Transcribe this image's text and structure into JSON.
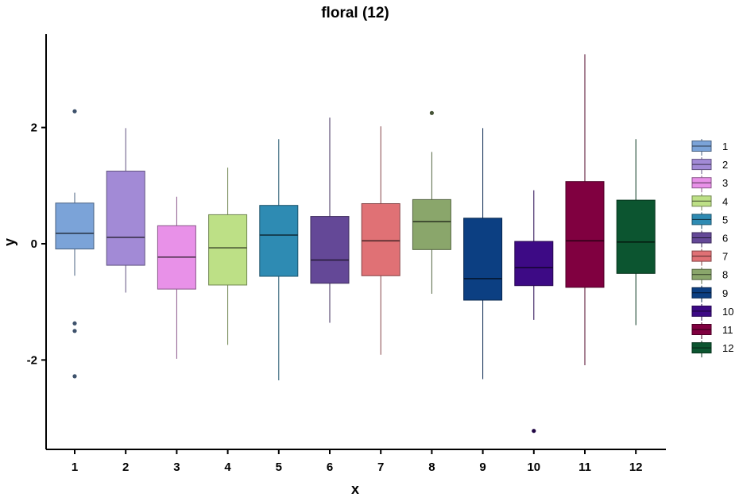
{
  "chart_data": {
    "type": "boxplot",
    "title": "floral (12)",
    "xlabel": "x",
    "ylabel": "y",
    "ylim": [
      -3.5,
      3.6
    ],
    "yticks": [
      -2,
      0,
      2
    ],
    "legend_position": "right",
    "categories": [
      "1",
      "2",
      "3",
      "4",
      "5",
      "6",
      "7",
      "8",
      "9",
      "10",
      "11",
      "12"
    ],
    "series": [
      {
        "name": "1",
        "color": "#7ba3d8",
        "whisker_low": -0.55,
        "q1": -0.09,
        "median": 0.18,
        "q3": 0.7,
        "whisker_high": 0.88,
        "outliers": [
          2.28,
          -1.37,
          -1.5,
          -2.28
        ]
      },
      {
        "name": "2",
        "color": "#a28ad6",
        "whisker_low": -0.84,
        "q1": -0.37,
        "median": 0.11,
        "q3": 1.25,
        "whisker_high": 1.99,
        "outliers": []
      },
      {
        "name": "3",
        "color": "#e891e8",
        "whisker_low": -1.98,
        "q1": -0.78,
        "median": -0.23,
        "q3": 0.31,
        "whisker_high": 0.81,
        "outliers": []
      },
      {
        "name": "4",
        "color": "#bde086",
        "whisker_low": -1.74,
        "q1": -0.71,
        "median": -0.07,
        "q3": 0.5,
        "whisker_high": 1.31,
        "outliers": []
      },
      {
        "name": "5",
        "color": "#2e8bb3",
        "whisker_low": -2.35,
        "q1": -0.56,
        "median": 0.15,
        "q3": 0.66,
        "whisker_high": 1.8,
        "outliers": []
      },
      {
        "name": "6",
        "color": "#644897",
        "whisker_low": -1.36,
        "q1": -0.68,
        "median": -0.28,
        "q3": 0.47,
        "whisker_high": 2.17,
        "outliers": []
      },
      {
        "name": "7",
        "color": "#e07175",
        "whisker_low": -1.91,
        "q1": -0.55,
        "median": 0.05,
        "q3": 0.69,
        "whisker_high": 2.02,
        "outliers": []
      },
      {
        "name": "8",
        "color": "#8aa66b",
        "whisker_low": -0.86,
        "q1": -0.1,
        "median": 0.38,
        "q3": 0.76,
        "whisker_high": 1.58,
        "outliers": [
          2.25
        ]
      },
      {
        "name": "9",
        "color": "#0c3f82",
        "whisker_low": -2.33,
        "q1": -0.97,
        "median": -0.6,
        "q3": 0.44,
        "whisker_high": 1.99,
        "outliers": []
      },
      {
        "name": "10",
        "color": "#3d0a85",
        "whisker_low": -1.31,
        "q1": -0.72,
        "median": -0.41,
        "q3": 0.04,
        "whisker_high": 0.92,
        "outliers": [
          -3.22
        ]
      },
      {
        "name": "11",
        "color": "#800040",
        "whisker_low": -2.09,
        "q1": -0.75,
        "median": 0.05,
        "q3": 1.07,
        "whisker_high": 3.26,
        "outliers": []
      },
      {
        "name": "12",
        "color": "#0c5530",
        "whisker_low": -1.4,
        "q1": -0.51,
        "median": 0.03,
        "q3": 0.75,
        "whisker_high": 1.8,
        "outliers": []
      }
    ]
  }
}
